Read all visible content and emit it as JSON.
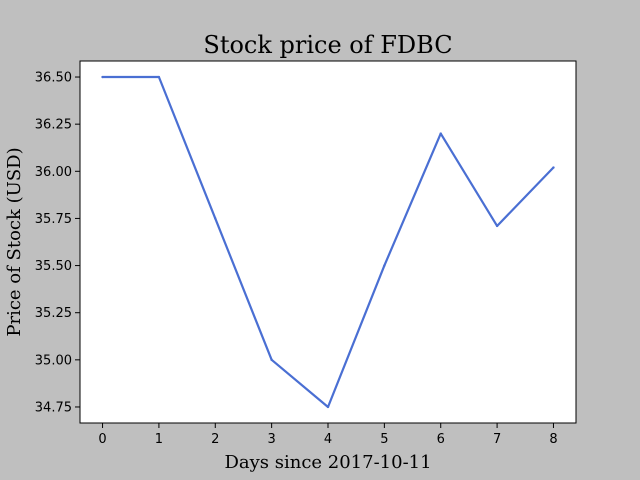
{
  "chart_data": {
    "type": "line",
    "title": "Stock price of FDBC",
    "xlabel": "Days since 2017-10-11",
    "ylabel": "Price of Stock (USD)",
    "x": [
      0,
      1,
      2,
      3,
      4,
      5,
      6,
      7,
      8
    ],
    "series": [
      {
        "name": "",
        "values": [
          36.5,
          36.5,
          35.75,
          35.0,
          34.75,
          35.5,
          36.2,
          35.71,
          36.02
        ],
        "color": "#4a6fd3"
      }
    ],
    "xticks": [
      0,
      1,
      2,
      3,
      4,
      5,
      6,
      7,
      8
    ],
    "xtick_labels": [
      "0",
      "1",
      "2",
      "3",
      "4",
      "5",
      "6",
      "7",
      "8"
    ],
    "yticks": [
      34.75,
      35.0,
      35.25,
      35.5,
      35.75,
      36.0,
      36.25,
      36.5
    ],
    "ytick_labels": [
      "34.75",
      "35.00",
      "35.25",
      "35.50",
      "35.75",
      "36.00",
      "36.25",
      "36.50"
    ],
    "xlim": [
      -0.4,
      8.4
    ],
    "ylim": [
      34.665,
      36.585
    ],
    "grid": false,
    "legend": "none",
    "background_color": "#bfbfbf",
    "plot_background_color": "#ffffff"
  }
}
